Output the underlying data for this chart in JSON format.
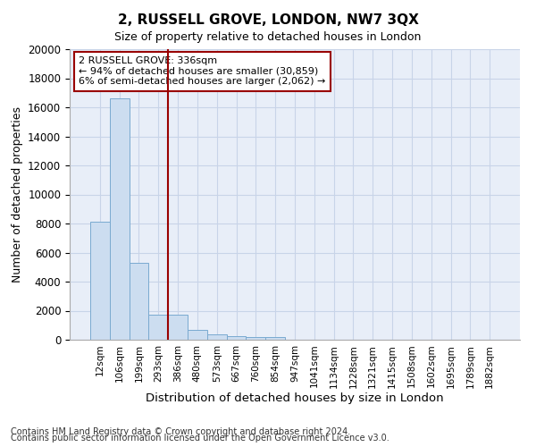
{
  "title": "2, RUSSELL GROVE, LONDON, NW7 3QX",
  "subtitle": "Size of property relative to detached houses in London",
  "xlabel": "Distribution of detached houses by size in London",
  "ylabel": "Number of detached properties",
  "bar_color": "#ccddf0",
  "bar_edge_color": "#7aaad0",
  "vline_color": "#990000",
  "vline_x": 3.5,
  "annotation_text": "2 RUSSELL GROVE: 336sqm\n← 94% of detached houses are smaller (30,859)\n6% of semi-detached houses are larger (2,062) →",
  "annotation_box_color": "#990000",
  "categories": [
    "12sqm",
    "106sqm",
    "199sqm",
    "293sqm",
    "386sqm",
    "480sqm",
    "573sqm",
    "667sqm",
    "760sqm",
    "854sqm",
    "947sqm",
    "1041sqm",
    "1134sqm",
    "1228sqm",
    "1321sqm",
    "1415sqm",
    "1508sqm",
    "1602sqm",
    "1695sqm",
    "1789sqm",
    "1882sqm"
  ],
  "values": [
    8100,
    16600,
    5300,
    1750,
    1750,
    700,
    350,
    270,
    200,
    200,
    0,
    0,
    0,
    0,
    0,
    0,
    0,
    0,
    0,
    0,
    0
  ],
  "ylim": [
    0,
    20000
  ],
  "yticks": [
    0,
    2000,
    4000,
    6000,
    8000,
    10000,
    12000,
    14000,
    16000,
    18000,
    20000
  ],
  "grid_color": "#c8d4e8",
  "background_color": "#e8eef8",
  "footnote_line1": "Contains HM Land Registry data © Crown copyright and database right 2024.",
  "footnote_line2": "Contains public sector information licensed under the Open Government Licence v3.0."
}
